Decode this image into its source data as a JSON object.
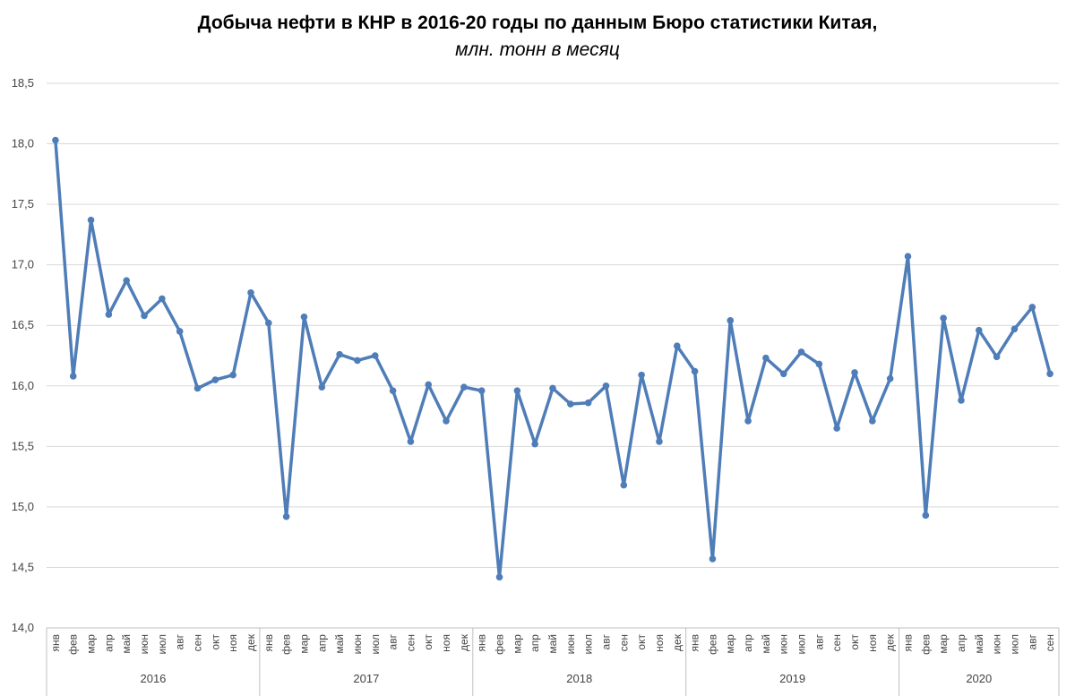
{
  "chart_data": {
    "type": "line",
    "title": "Добыча нефти в КНР в 2016-20 годы по данным Бюро статистики Китая,",
    "subtitle": "млн. тонн в месяц",
    "ylim": [
      14.0,
      18.5
    ],
    "yticks": [
      "14,0",
      "14,5",
      "15,0",
      "15,5",
      "16,0",
      "16,5",
      "17,0",
      "17,5",
      "18,0",
      "18,5"
    ],
    "ytick_values": [
      14.0,
      14.5,
      15.0,
      15.5,
      16.0,
      16.5,
      17.0,
      17.5,
      18.0,
      18.5
    ],
    "months": [
      "янв",
      "фев",
      "мар",
      "апр",
      "май",
      "июн",
      "июл",
      "авг",
      "сен",
      "окт",
      "ноя",
      "дек"
    ],
    "years": [
      {
        "label": "2016",
        "month_count": 12
      },
      {
        "label": "2017",
        "month_count": 12
      },
      {
        "label": "2018",
        "month_count": 12
      },
      {
        "label": "2019",
        "month_count": 12
      },
      {
        "label": "2020",
        "month_count": 9
      }
    ],
    "grid": true,
    "series": [
      {
        "color": "#4f7db8",
        "values": [
          18.03,
          16.08,
          17.37,
          16.59,
          16.87,
          16.58,
          16.72,
          16.45,
          15.98,
          16.05,
          16.09,
          16.77,
          16.52,
          14.92,
          16.57,
          15.99,
          16.26,
          16.21,
          16.25,
          15.96,
          15.54,
          16.01,
          15.71,
          15.99,
          15.96,
          14.42,
          15.96,
          15.52,
          15.98,
          15.85,
          15.86,
          16.0,
          15.18,
          16.09,
          15.54,
          16.33,
          16.12,
          14.57,
          16.54,
          15.71,
          16.23,
          16.1,
          16.28,
          16.18,
          15.65,
          16.11,
          15.71,
          16.06,
          17.07,
          14.93,
          16.56,
          15.88,
          16.46,
          16.24,
          16.47,
          16.65,
          16.1
        ]
      }
    ]
  }
}
